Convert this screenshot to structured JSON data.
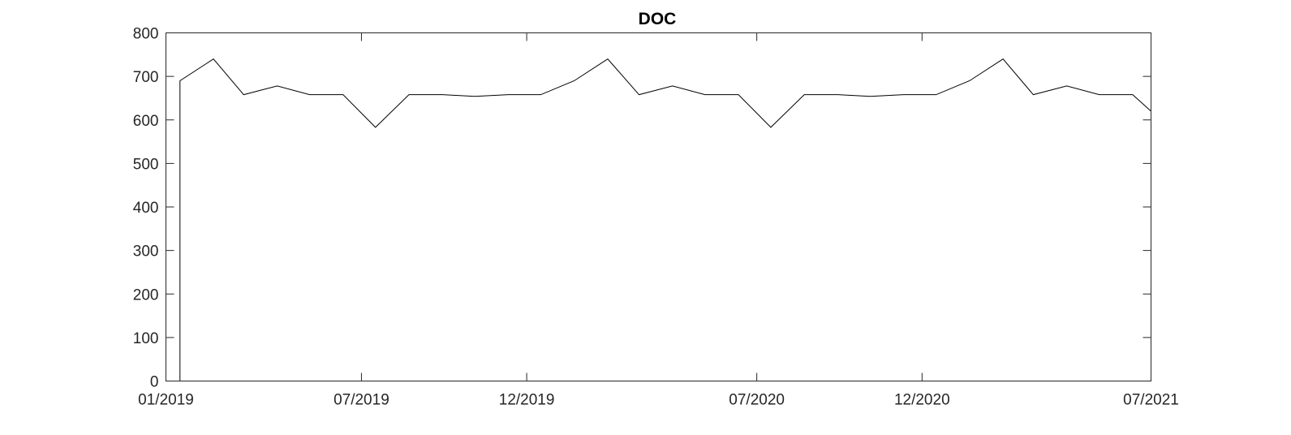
{
  "chart_data": {
    "type": "line",
    "title": "DOC",
    "xlabel": "",
    "ylabel": "",
    "xlim": [
      "2019-01-01",
      "2021-07-01"
    ],
    "ylim": [
      0,
      800
    ],
    "grid": false,
    "x_ticks": [
      {
        "date": "2019-01-01",
        "label": "01/2019"
      },
      {
        "date": "2019-07-01",
        "label": "07/2019"
      },
      {
        "date": "2019-12-01",
        "label": "12/2019"
      },
      {
        "date": "2020-07-01",
        "label": "07/2020"
      },
      {
        "date": "2020-12-01",
        "label": "12/2020"
      },
      {
        "date": "2021-07-01",
        "label": "07/2021"
      }
    ],
    "y_ticks": [
      0,
      100,
      200,
      300,
      400,
      500,
      600,
      700,
      800
    ],
    "series": [
      {
        "color": "#000000",
        "x": [
          "2019-01-01",
          "2019-01-14",
          "2019-01-14",
          "2019-02-14",
          "2019-03-14",
          "2019-04-14",
          "2019-05-14",
          "2019-06-14",
          "2019-07-14",
          "2019-08-14",
          "2019-09-14",
          "2019-10-14",
          "2019-11-14",
          "2019-12-14",
          "2020-01-14",
          "2020-02-14",
          "2020-03-14",
          "2020-04-14",
          "2020-05-14",
          "2020-06-14",
          "2020-07-14",
          "2020-08-14",
          "2020-09-14",
          "2020-10-14",
          "2020-11-14",
          "2020-12-14",
          "2021-01-14",
          "2021-02-14",
          "2021-03-14",
          "2021-04-14",
          "2021-05-14",
          "2021-06-14",
          "2021-07-01"
        ],
        "y": [
          0,
          0,
          690,
          740,
          658,
          678,
          658,
          658,
          583,
          658,
          658,
          654,
          658,
          658,
          690,
          740,
          658,
          678,
          658,
          658,
          583,
          658,
          658,
          654,
          658,
          658,
          690,
          740,
          658,
          678,
          658,
          658,
          620
        ]
      }
    ]
  }
}
